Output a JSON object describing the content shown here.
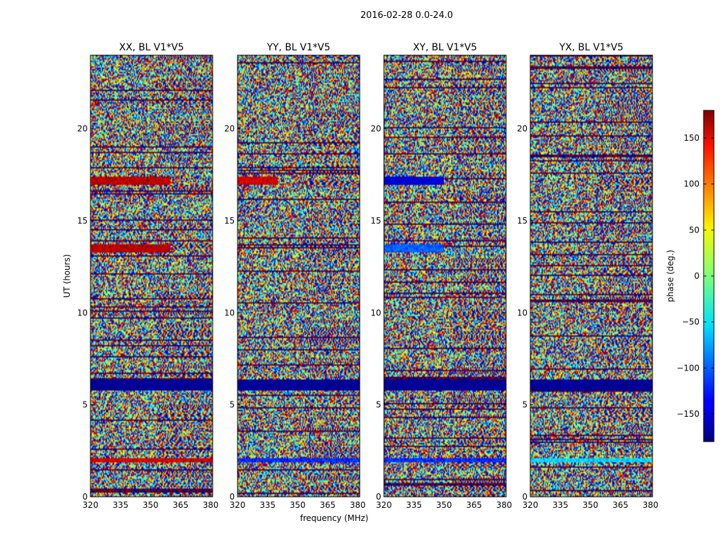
{
  "chart_data": {
    "type": "heatmap",
    "title": "2016-02-28 0.0-24.0",
    "xlabel": "frequency (MHz)",
    "ylabel": "UT (hours)",
    "xlim": [
      320,
      381
    ],
    "ylim": [
      0,
      24
    ],
    "xticks": [
      320,
      335,
      350,
      365,
      380
    ],
    "yticks": [
      0,
      5,
      10,
      15,
      20
    ],
    "colormap": "jet",
    "colorbar": {
      "label": "phase (deg.)",
      "range": [
        -180,
        180
      ],
      "ticks": [
        150,
        100,
        50,
        0,
        -50,
        -100,
        -150
      ],
      "tick_labels": [
        "150",
        "100",
        "50",
        "0",
        "−50",
        "−100",
        "−150"
      ]
    },
    "panels": [
      {
        "title": "XX, BL V1*V5",
        "polarization": "XX",
        "baseline": "V1*V5",
        "bands": [
          {
            "y": [
              17.0,
              17.4
            ],
            "x": [
              320,
              360
            ],
            "phase_deg": 160
          },
          {
            "y": [
              13.3,
              13.7
            ],
            "x": [
              320,
              360
            ],
            "phase_deg": 160
          },
          {
            "y": [
              5.8,
              6.3
            ],
            "x": [
              320,
              381
            ],
            "phase_deg": -175
          },
          {
            "y": [
              1.9,
              2.1
            ],
            "x": [
              320,
              381
            ],
            "phase_deg": 150
          }
        ]
      },
      {
        "title": "YY, BL V1*V5",
        "polarization": "YY",
        "baseline": "V1*V5",
        "bands": [
          {
            "y": [
              17.0,
              17.4
            ],
            "x": [
              320,
              340
            ],
            "phase_deg": 150
          },
          {
            "y": [
              5.8,
              6.3
            ],
            "x": [
              320,
              381
            ],
            "phase_deg": -175
          },
          {
            "y": [
              1.9,
              2.1
            ],
            "x": [
              320,
              381
            ],
            "phase_deg": -120
          }
        ]
      },
      {
        "title": "XY, BL V1*V5",
        "polarization": "XY",
        "baseline": "V1*V5",
        "bands": [
          {
            "y": [
              17.0,
              17.4
            ],
            "x": [
              320,
              350
            ],
            "phase_deg": -150
          },
          {
            "y": [
              13.3,
              13.7
            ],
            "x": [
              320,
              350
            ],
            "phase_deg": -100
          },
          {
            "y": [
              5.8,
              6.3
            ],
            "x": [
              320,
              381
            ],
            "phase_deg": -175
          },
          {
            "y": [
              1.9,
              2.1
            ],
            "x": [
              320,
              381
            ],
            "phase_deg": -120
          }
        ]
      },
      {
        "title": "YX, BL V1*V5",
        "polarization": "YX",
        "baseline": "V1*V5",
        "bands": [
          {
            "y": [
              5.8,
              6.3
            ],
            "x": [
              320,
              381
            ],
            "phase_deg": -175
          },
          {
            "y": [
              1.9,
              2.1
            ],
            "x": [
              320,
              381
            ],
            "phase_deg": -60
          }
        ]
      }
    ]
  }
}
